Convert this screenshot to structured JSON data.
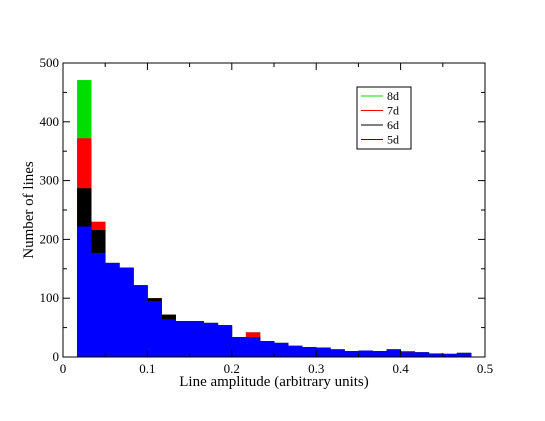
{
  "chart_data": {
    "type": "bar",
    "title": "",
    "xlabel": "Line amplitude (arbitrary units)",
    "ylabel": "Number of lines",
    "xlim": [
      0,
      0.5
    ],
    "ylim": [
      0,
      500
    ],
    "xticks": [
      0,
      0.1,
      0.2,
      0.3,
      0.4,
      0.5
    ],
    "xtick_labels": [
      "0",
      "0.1",
      "0.2",
      "0.3",
      "0.4",
      "0.5"
    ],
    "yticks": [
      0,
      100,
      200,
      300,
      400,
      500
    ],
    "ytick_labels": [
      "0",
      "100",
      "200",
      "300",
      "400",
      "500"
    ],
    "grid": false,
    "stacked_cumulative": true,
    "legend_position": "top-right",
    "bin_edges": [
      0.0167,
      0.0333,
      0.05,
      0.0667,
      0.0833,
      0.1,
      0.1167,
      0.1333,
      0.15,
      0.1667,
      0.1833,
      0.2,
      0.2167,
      0.2333,
      0.25,
      0.2667,
      0.2833,
      0.3,
      0.3167,
      0.3333,
      0.35,
      0.3667,
      0.3833,
      0.4,
      0.4167,
      0.4333,
      0.45,
      0.4667
    ],
    "series": [
      {
        "name": "8d",
        "color": "#00dd00",
        "values": [
          471,
          230,
          160,
          152,
          122,
          100,
          72,
          61,
          61,
          58,
          54,
          34,
          42,
          27,
          24,
          19,
          17,
          16,
          13,
          10,
          11,
          10,
          13,
          10,
          8,
          6,
          6,
          7
        ]
      },
      {
        "name": "7d",
        "color": "#ff0000",
        "values": [
          372,
          230,
          160,
          152,
          122,
          100,
          72,
          61,
          61,
          58,
          54,
          34,
          42,
          27,
          24,
          19,
          17,
          16,
          13,
          10,
          11,
          10,
          13,
          10,
          8,
          6,
          5,
          7
        ]
      },
      {
        "name": "6d",
        "color": "#000000",
        "values": [
          287,
          216,
          160,
          152,
          122,
          100,
          72,
          61,
          61,
          58,
          54,
          34,
          34,
          27,
          24,
          19,
          17,
          16,
          13,
          10,
          11,
          10,
          13,
          8,
          8,
          6,
          5,
          7
        ]
      },
      {
        "name": "5d",
        "color": "#0000ff",
        "values": [
          222,
          177,
          160,
          152,
          122,
          95,
          64,
          61,
          61,
          58,
          54,
          34,
          34,
          27,
          24,
          19,
          17,
          16,
          13,
          10,
          11,
          10,
          13,
          8,
          8,
          6,
          5,
          7
        ]
      }
    ]
  }
}
